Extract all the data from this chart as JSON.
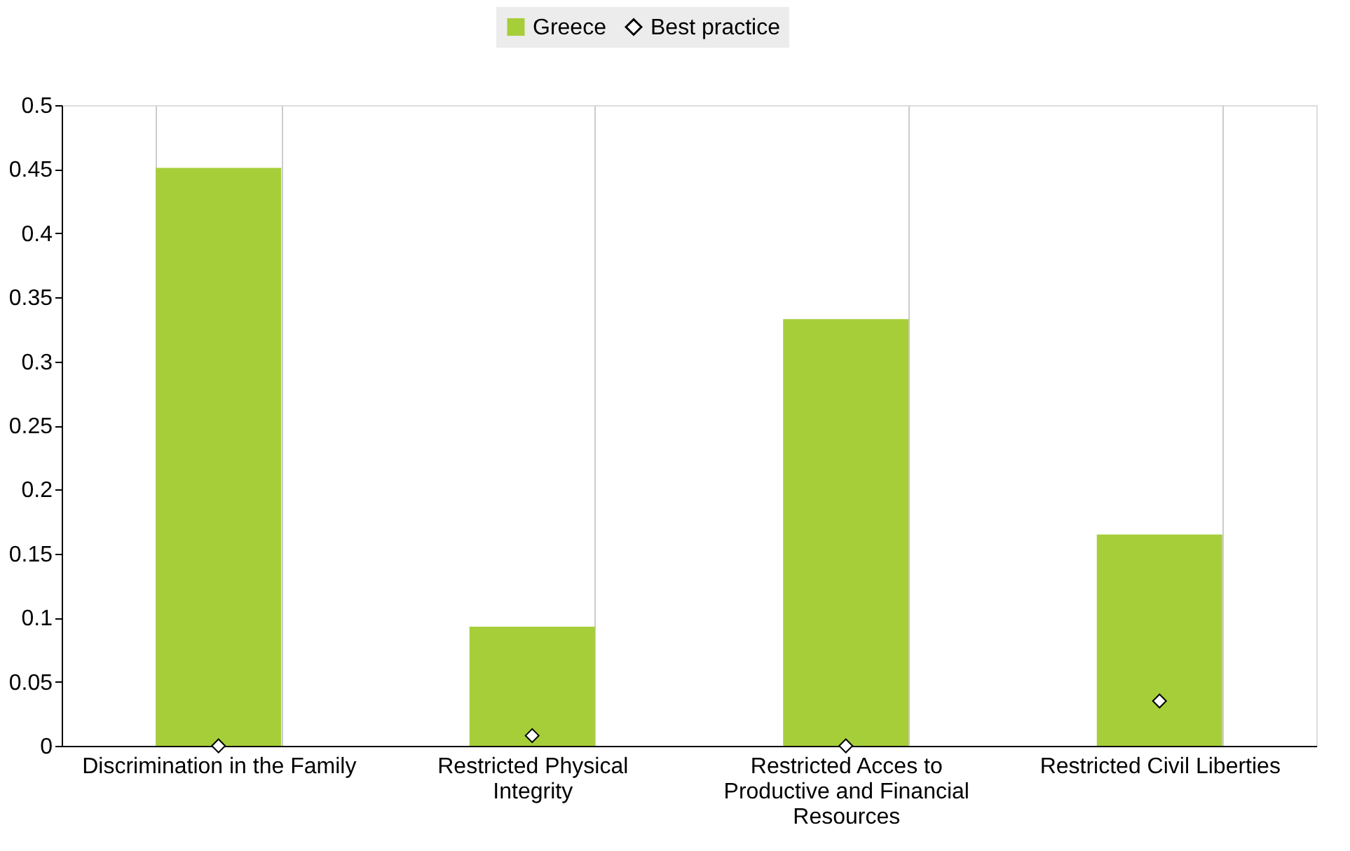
{
  "chart_data": {
    "type": "bar",
    "categories": [
      "Discrimination in the Family",
      "Restricted Physical Integrity",
      "Restricted Acces to Productive and Financial Resources",
      "Restricted Civil Liberties"
    ],
    "series": [
      {
        "name": "Greece",
        "color": "#a6ce39",
        "values": [
          0.451,
          0.093,
          0.333,
          0.165
        ]
      },
      {
        "name": "Best practice",
        "type": "scatter",
        "marker": "diamond",
        "color": "#ffffff",
        "values": [
          0,
          0.008,
          0,
          0.035
        ]
      }
    ],
    "ylim": [
      0,
      0.5
    ],
    "yticks": [
      0,
      0.05,
      0.1,
      0.15,
      0.2,
      0.25,
      0.3,
      0.35,
      0.4,
      0.45,
      0.5
    ],
    "grid": "x",
    "legend": "top"
  }
}
